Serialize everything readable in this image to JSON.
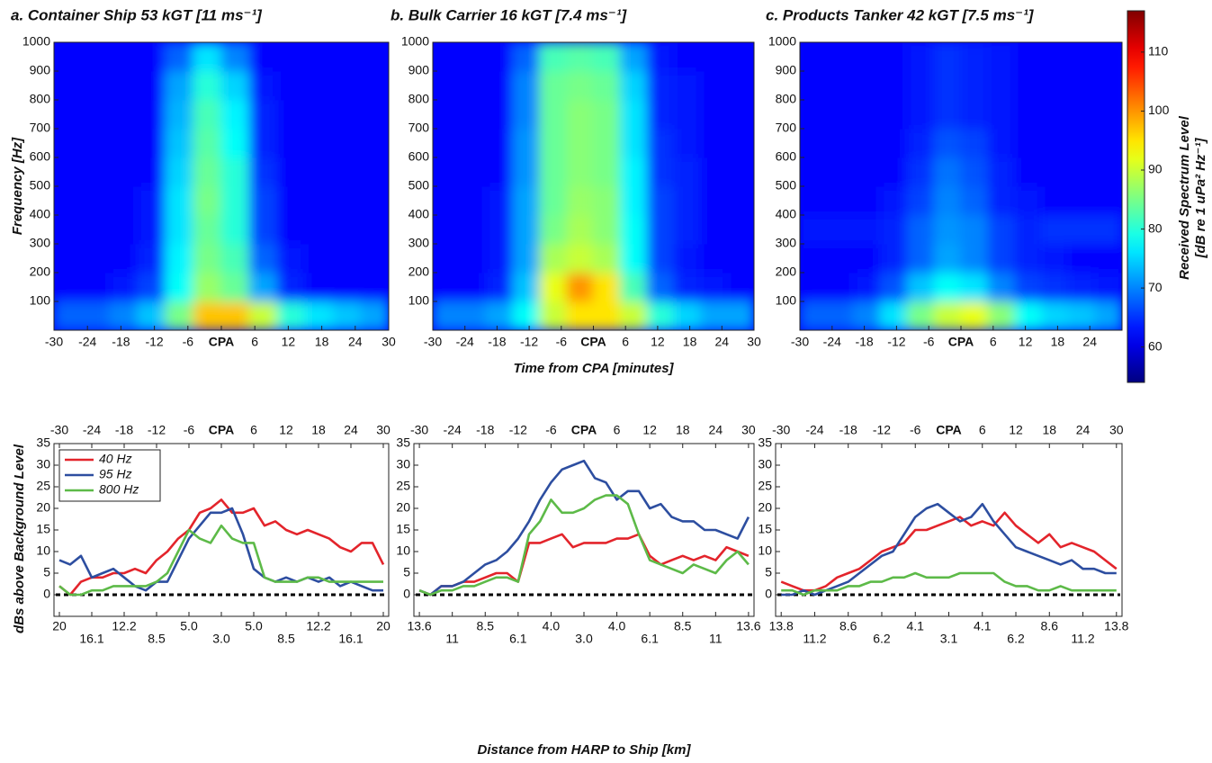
{
  "chart_data": [
    {
      "type": "heatmap",
      "title": "a. Container Ship 53 kGT [11 ms⁻¹]",
      "ylabel": "Frequency [Hz]",
      "x_edges": [
        -30,
        -25,
        -20,
        -15,
        -10,
        -5,
        0,
        5,
        10,
        15,
        20,
        25,
        30
      ],
      "y_edges": [
        0,
        100,
        200,
        300,
        400,
        500,
        600,
        700,
        800,
        900,
        1000
      ],
      "z": [
        [
          68,
          68,
          70,
          74,
          85,
          97,
          97,
          90,
          80,
          76,
          74,
          72
        ],
        [
          62,
          62,
          63,
          66,
          78,
          87,
          84,
          72,
          64,
          62,
          62,
          62
        ],
        [
          62,
          62,
          62,
          64,
          77,
          85,
          82,
          68,
          63,
          62,
          62,
          62
        ],
        [
          62,
          62,
          62,
          63,
          76,
          84,
          80,
          66,
          62,
          62,
          62,
          62
        ],
        [
          62,
          62,
          62,
          63,
          76,
          85,
          80,
          66,
          62,
          62,
          62,
          62
        ],
        [
          62,
          62,
          62,
          62,
          75,
          84,
          80,
          65,
          62,
          62,
          62,
          62
        ],
        [
          62,
          62,
          62,
          62,
          74,
          83,
          78,
          64,
          62,
          62,
          62,
          62
        ],
        [
          62,
          62,
          62,
          62,
          73,
          82,
          77,
          64,
          62,
          62,
          62,
          62
        ],
        [
          62,
          62,
          62,
          62,
          72,
          80,
          75,
          63,
          62,
          62,
          62,
          62
        ],
        [
          62,
          62,
          62,
          62,
          68,
          76,
          70,
          62,
          62,
          62,
          62,
          62
        ]
      ],
      "xlim": [
        -30,
        30
      ],
      "ylim": [
        0,
        1000
      ],
      "xticks": [
        -30,
        -24,
        -18,
        -12,
        -6,
        {
          "value": 0,
          "label": "CPA"
        },
        6,
        12,
        18,
        24,
        30
      ],
      "yticks": [
        100,
        200,
        300,
        400,
        500,
        600,
        700,
        800,
        900,
        1000
      ],
      "colormap": "jet"
    },
    {
      "type": "heatmap",
      "title": "b. Bulk Carrier 16 kGT [7.4 ms⁻¹]",
      "xlabel": "Time from CPA [minutes]",
      "x_edges": [
        -30,
        -25,
        -20,
        -15,
        -10,
        -5,
        0,
        5,
        10,
        15,
        20,
        25,
        30
      ],
      "y_edges": [
        0,
        100,
        200,
        300,
        400,
        500,
        600,
        700,
        800,
        900,
        1000
      ],
      "z": [
        [
          70,
          70,
          72,
          78,
          90,
          95,
          95,
          90,
          80,
          75,
          72,
          72
        ],
        [
          62,
          62,
          64,
          74,
          92,
          100,
          95,
          82,
          68,
          64,
          63,
          62
        ],
        [
          62,
          62,
          63,
          72,
          88,
          90,
          88,
          78,
          66,
          63,
          62,
          62
        ],
        [
          62,
          62,
          63,
          72,
          85,
          88,
          86,
          78,
          66,
          64,
          62,
          62
        ],
        [
          62,
          62,
          63,
          72,
          84,
          87,
          86,
          77,
          66,
          64,
          62,
          62
        ],
        [
          62,
          62,
          62,
          71,
          84,
          86,
          85,
          77,
          65,
          64,
          62,
          62
        ],
        [
          62,
          62,
          62,
          71,
          84,
          86,
          85,
          76,
          65,
          63,
          62,
          62
        ],
        [
          62,
          62,
          62,
          70,
          84,
          86,
          85,
          76,
          64,
          63,
          62,
          62
        ],
        [
          62,
          62,
          62,
          70,
          84,
          85,
          84,
          75,
          64,
          63,
          62,
          62
        ],
        [
          62,
          62,
          62,
          68,
          82,
          83,
          82,
          72,
          63,
          62,
          62,
          62
        ]
      ],
      "xlim": [
        -30,
        30
      ],
      "ylim": [
        0,
        1000
      ],
      "xticks": [
        -30,
        -24,
        -18,
        -12,
        -6,
        {
          "value": 0,
          "label": "CPA"
        },
        6,
        12,
        18,
        24,
        30
      ],
      "yticks": [
        100,
        200,
        300,
        400,
        500,
        600,
        700,
        800,
        900,
        1000
      ],
      "colormap": "jet"
    },
    {
      "type": "heatmap",
      "title": "c. Products Tanker 42 kGT [7.5 ms⁻¹]",
      "x_edges": [
        -30,
        -25,
        -20,
        -15,
        -10,
        -5,
        0,
        5,
        10,
        15,
        20,
        25,
        30
      ],
      "y_edges": [
        0,
        100,
        200,
        300,
        400,
        500,
        600,
        700,
        800,
        900,
        1000
      ],
      "z": [
        [
          68,
          68,
          70,
          76,
          85,
          90,
          92,
          86,
          78,
          75,
          74,
          72
        ],
        [
          62,
          62,
          63,
          67,
          74,
          78,
          76,
          70,
          66,
          65,
          64,
          63
        ],
        [
          62,
          62,
          62,
          64,
          68,
          72,
          70,
          66,
          64,
          63,
          62,
          62
        ],
        [
          63,
          63,
          63,
          64,
          68,
          71,
          70,
          66,
          64,
          65,
          65,
          65
        ],
        [
          62,
          62,
          62,
          63,
          66,
          70,
          68,
          64,
          63,
          62,
          62,
          62
        ],
        [
          62,
          62,
          62,
          62,
          65,
          69,
          67,
          64,
          62,
          62,
          62,
          62
        ],
        [
          62,
          62,
          62,
          62,
          64,
          67,
          66,
          63,
          62,
          62,
          62,
          62
        ],
        [
          62,
          62,
          62,
          62,
          63,
          65,
          64,
          63,
          62,
          62,
          62,
          62
        ],
        [
          62,
          62,
          62,
          62,
          63,
          65,
          64,
          63,
          62,
          62,
          62,
          62
        ],
        [
          62,
          62,
          62,
          62,
          63,
          65,
          64,
          63,
          62,
          62,
          62,
          62
        ]
      ],
      "xlim": [
        -30,
        30
      ],
      "ylim": [
        0,
        1000
      ],
      "xticks": [
        -30,
        -24,
        -18,
        -12,
        -6,
        {
          "value": 0,
          "label": "CPA"
        },
        6,
        12,
        18,
        24
      ],
      "yticks": [
        100,
        200,
        300,
        400,
        500,
        600,
        700,
        800,
        900,
        1000
      ],
      "colormap": "jet"
    },
    {
      "type": "line",
      "ylabel": "dBs above Background Level",
      "legend": "upper left",
      "x": [
        -30,
        -28,
        -26,
        -24,
        -22,
        -20,
        -18,
        -16,
        -14,
        -12,
        -10,
        -8,
        -6,
        -4,
        -2,
        0,
        2,
        4,
        6,
        8,
        10,
        12,
        14,
        16,
        18,
        20,
        22,
        24,
        26,
        28,
        30
      ],
      "series": [
        {
          "name": "40 Hz",
          "color": "#e3242b",
          "values": [
            2,
            0,
            3,
            4,
            4,
            5,
            5,
            6,
            5,
            8,
            10,
            13,
            15,
            19,
            20,
            22,
            19,
            19,
            20,
            16,
            17,
            15,
            14,
            15,
            14,
            13,
            11,
            10,
            12,
            12,
            7
          ]
        },
        {
          "name": "95 Hz",
          "color": "#2d4ea0",
          "values": [
            8,
            7,
            9,
            4,
            5,
            6,
            4,
            2,
            1,
            3,
            3,
            8,
            13,
            16,
            19,
            19,
            20,
            14,
            6,
            4,
            3,
            4,
            3,
            4,
            3,
            4,
            2,
            3,
            2,
            1,
            1
          ]
        },
        {
          "name": "800 Hz",
          "color": "#5dba48",
          "values": [
            2,
            0,
            0,
            1,
            1,
            2,
            2,
            2,
            2,
            3,
            5,
            10,
            15,
            13,
            12,
            16,
            13,
            12,
            12,
            4,
            3,
            3,
            3,
            4,
            4,
            3,
            3,
            3,
            3,
            3,
            3
          ]
        }
      ],
      "xlim": [
        -31,
        31
      ],
      "ylim": [
        -5,
        35
      ],
      "xticks": [
        -30,
        -24,
        -18,
        -12,
        -6,
        {
          "value": 0,
          "label": "CPA"
        },
        6,
        12,
        18,
        24,
        30
      ],
      "yticks": [
        0,
        5,
        10,
        15,
        20,
        25,
        30,
        35
      ],
      "x2ticks": [
        {
          "value": -30,
          "label": "20"
        },
        {
          "value": -24,
          "label": "16.1"
        },
        {
          "value": -18,
          "label": "12.2"
        },
        {
          "value": -12,
          "label": "8.5"
        },
        {
          "value": -6,
          "label": "5.0"
        },
        {
          "value": 0,
          "label": "3.0"
        },
        {
          "value": 6,
          "label": "5.0"
        },
        {
          "value": 12,
          "label": "8.5"
        },
        {
          "value": 18,
          "label": "12.2"
        },
        {
          "value": 24,
          "label": "16.1"
        },
        {
          "value": 30,
          "label": "20"
        }
      ]
    },
    {
      "type": "line",
      "x2label": "Distance from HARP to Ship [km]",
      "x": [
        -30,
        -28,
        -26,
        -24,
        -22,
        -20,
        -18,
        -16,
        -14,
        -12,
        -10,
        -8,
        -6,
        -4,
        -2,
        0,
        2,
        4,
        6,
        8,
        10,
        12,
        14,
        16,
        18,
        20,
        22,
        24,
        26,
        28,
        30
      ],
      "series": [
        {
          "name": "40 Hz",
          "color": "#e3242b",
          "values": [
            1,
            0,
            2,
            2,
            3,
            3,
            4,
            5,
            5,
            3,
            12,
            12,
            13,
            14,
            11,
            12,
            12,
            12,
            13,
            13,
            14,
            9,
            7,
            8,
            9,
            8,
            9,
            8,
            11,
            10,
            9
          ]
        },
        {
          "name": "95 Hz",
          "color": "#2d4ea0",
          "values": [
            1,
            0,
            2,
            2,
            3,
            5,
            7,
            8,
            10,
            13,
            17,
            22,
            26,
            29,
            30,
            31,
            27,
            26,
            22,
            24,
            24,
            20,
            21,
            18,
            17,
            17,
            15,
            15,
            14,
            13,
            18
          ]
        },
        {
          "name": "800 Hz",
          "color": "#5dba48",
          "values": [
            1,
            0,
            1,
            1,
            2,
            2,
            3,
            4,
            4,
            3,
            14,
            17,
            22,
            19,
            19,
            20,
            22,
            23,
            23,
            21,
            14,
            8,
            7,
            6,
            5,
            7,
            6,
            5,
            8,
            10,
            7
          ]
        }
      ],
      "xlim": [
        -31,
        31
      ],
      "ylim": [
        -5,
        35
      ],
      "xticks": [
        -30,
        -24,
        -18,
        -12,
        -6,
        {
          "value": 0,
          "label": "CPA"
        },
        6,
        12,
        18,
        24,
        30
      ],
      "yticks": [
        0,
        5,
        10,
        15,
        20,
        25,
        30,
        35
      ],
      "x2ticks": [
        {
          "value": -30,
          "label": "13.6"
        },
        {
          "value": -24,
          "label": "11"
        },
        {
          "value": -18,
          "label": "8.5"
        },
        {
          "value": -12,
          "label": "6.1"
        },
        {
          "value": -6,
          "label": "4.0"
        },
        {
          "value": 0,
          "label": "3.0"
        },
        {
          "value": 6,
          "label": "4.0"
        },
        {
          "value": 12,
          "label": "6.1"
        },
        {
          "value": 18,
          "label": "8.5"
        },
        {
          "value": 24,
          "label": "11"
        },
        {
          "value": 30,
          "label": "13.6"
        }
      ]
    },
    {
      "type": "line",
      "x": [
        -30,
        -28,
        -26,
        -24,
        -22,
        -20,
        -18,
        -16,
        -14,
        -12,
        -10,
        -8,
        -6,
        -4,
        -2,
        0,
        2,
        4,
        6,
        8,
        10,
        12,
        14,
        16,
        18,
        20,
        22,
        24,
        26,
        28,
        30
      ],
      "series": [
        {
          "name": "40 Hz",
          "color": "#e3242b",
          "values": [
            3,
            2,
            1,
            1,
            2,
            4,
            5,
            6,
            8,
            10,
            11,
            12,
            15,
            15,
            16,
            17,
            18,
            16,
            17,
            16,
            19,
            16,
            14,
            12,
            14,
            11,
            12,
            11,
            10,
            8,
            6
          ]
        },
        {
          "name": "95 Hz",
          "color": "#2d4ea0",
          "values": [
            0,
            0,
            1,
            0,
            1,
            2,
            3,
            5,
            7,
            9,
            10,
            14,
            18,
            20,
            21,
            19,
            17,
            18,
            21,
            17,
            14,
            11,
            10,
            9,
            8,
            7,
            8,
            6,
            6,
            5,
            5
          ]
        },
        {
          "name": "800 Hz",
          "color": "#5dba48",
          "values": [
            1,
            1,
            0,
            1,
            1,
            1,
            2,
            2,
            3,
            3,
            4,
            4,
            5,
            4,
            4,
            4,
            5,
            5,
            5,
            5,
            3,
            2,
            2,
            1,
            1,
            2,
            1,
            1,
            1,
            1,
            1
          ]
        }
      ],
      "xlim": [
        -31,
        31
      ],
      "ylim": [
        -5,
        35
      ],
      "xticks": [
        -30,
        -24,
        -18,
        -12,
        -6,
        {
          "value": 0,
          "label": "CPA"
        },
        6,
        12,
        18,
        24,
        30
      ],
      "yticks": [
        0,
        5,
        10,
        15,
        20,
        25,
        30,
        35
      ],
      "x2ticks": [
        {
          "value": -30,
          "label": "13.8"
        },
        {
          "value": -24,
          "label": "11.2"
        },
        {
          "value": -18,
          "label": "8.6"
        },
        {
          "value": -12,
          "label": "6.2"
        },
        {
          "value": -6,
          "label": "4.1"
        },
        {
          "value": 0,
          "label": "3.1"
        },
        {
          "value": 6,
          "label": "4.1"
        },
        {
          "value": 12,
          "label": "6.2"
        },
        {
          "value": 18,
          "label": "8.6"
        },
        {
          "value": 24,
          "label": "11.2"
        },
        {
          "value": 30,
          "label": "13.8"
        }
      ]
    },
    {
      "type": "colorbar",
      "colormap": "jet",
      "clim": [
        54,
        117
      ],
      "ticks": [
        60,
        70,
        80,
        90,
        100,
        110
      ],
      "label": [
        "Received Spectrum Level",
        "[dB re 1 uPa² Hz⁻¹]"
      ]
    }
  ]
}
